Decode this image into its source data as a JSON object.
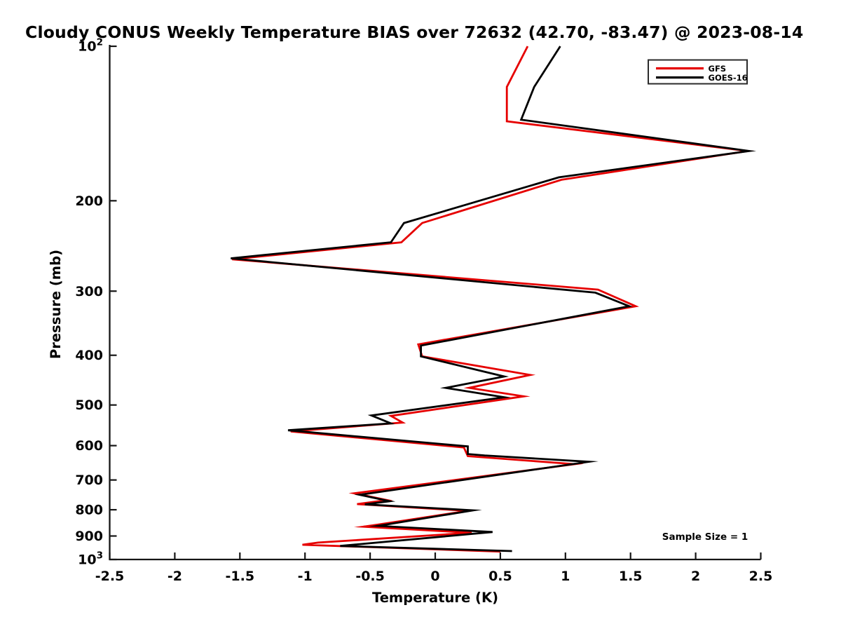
{
  "title": "Cloudy CONUS Weekly Temperature BIAS over 72632 (42.70, -83.47) @ 2023-08-14",
  "colors": {
    "gfs_red": "#e60000",
    "goes16_black": "#000000",
    "axis": "#151515",
    "background": "#ffffff"
  },
  "annotation": {
    "text": "Sample Size = 1",
    "position": "bottom-right"
  },
  "legend": {
    "position": "top-right",
    "entries": [
      {
        "label": "GFS",
        "color": "#e60000"
      },
      {
        "label": "GOES-16",
        "color": "#000000"
      }
    ]
  },
  "chart_data": {
    "type": "line",
    "title": "Cloudy CONUS Weekly Temperature BIAS over 72632 (42.70, -83.47) @ 2023-08-14",
    "xlabel": "Temperature (K)",
    "ylabel": "Pressure (mb)",
    "xlim": [
      -2.5,
      2.5
    ],
    "x_ticks": [
      -2.5,
      -2,
      -1.5,
      -1,
      -0.5,
      0,
      0.5,
      1,
      1.5,
      2,
      2.5
    ],
    "x_tick_labels": [
      "-2.5",
      "-2",
      "-1.5",
      "-1",
      "-0.5",
      "0",
      "0.5",
      "1",
      "1.5",
      "2",
      "2.5"
    ],
    "y_scale": "log",
    "y_inverted": true,
    "ylim": [
      100,
      1000
    ],
    "y_ticks": [
      100,
      200,
      300,
      400,
      500,
      600,
      700,
      800,
      900,
      1000
    ],
    "y_tick_labels": [
      "10^2",
      "200",
      "300",
      "400",
      "500",
      "600",
      "700",
      "800",
      "900",
      "10^3"
    ],
    "grid": false,
    "legend_position": "top-right",
    "annotation": "Sample Size = 1",
    "series": [
      {
        "name": "GFS",
        "color": "#e60000",
        "points_pressure_mb_temp_k": [
          [
            100,
            0.71
          ],
          [
            120,
            0.55
          ],
          [
            140,
            0.55
          ],
          [
            160,
            2.4
          ],
          [
            182,
            0.97
          ],
          [
            221,
            -0.1
          ],
          [
            241,
            -0.26
          ],
          [
            260,
            -1.56
          ],
          [
            298,
            1.25
          ],
          [
            321,
            1.54
          ],
          [
            381,
            -0.13
          ],
          [
            402,
            -0.1
          ],
          [
            437,
            0.73
          ],
          [
            463,
            0.26
          ],
          [
            481,
            0.68
          ],
          [
            525,
            -0.34
          ],
          [
            541,
            -0.25
          ],
          [
            563,
            -1.11
          ],
          [
            605,
            0.22
          ],
          [
            629,
            0.25
          ],
          [
            652,
            1.07
          ],
          [
            743,
            -0.62
          ],
          [
            766,
            -0.37
          ],
          [
            780,
            -0.6
          ],
          [
            804,
            0.25
          ],
          [
            855,
            -0.44
          ],
          [
            863,
            -0.55
          ],
          [
            887,
            0.28
          ],
          [
            927,
            -0.9
          ],
          [
            936,
            -1.02
          ],
          [
            965,
            0.5
          ]
        ]
      },
      {
        "name": "GOES-16",
        "color": "#000000",
        "points_pressure_mb_temp_k": [
          [
            100,
            0.96
          ],
          [
            120,
            0.76
          ],
          [
            139,
            0.66
          ],
          [
            160,
            2.41
          ],
          [
            180,
            0.95
          ],
          [
            221,
            -0.24
          ],
          [
            241,
            -0.34
          ],
          [
            259,
            -1.57
          ],
          [
            302,
            1.23
          ],
          [
            321,
            1.49
          ],
          [
            383,
            -0.11
          ],
          [
            402,
            -0.11
          ],
          [
            440,
            0.53
          ],
          [
            463,
            0.08
          ],
          [
            483,
            0.53
          ],
          [
            524,
            -0.49
          ],
          [
            543,
            -0.34
          ],
          [
            560,
            -1.13
          ],
          [
            602,
            0.25
          ],
          [
            623,
            0.25
          ],
          [
            627,
            0.38
          ],
          [
            645,
            1.18
          ],
          [
            748,
            -0.58
          ],
          [
            770,
            -0.35
          ],
          [
            781,
            -0.54
          ],
          [
            802,
            0.29
          ],
          [
            860,
            -0.44
          ],
          [
            884,
            0.44
          ],
          [
            941,
            -0.73
          ],
          [
            963,
            0.59
          ]
        ]
      }
    ]
  }
}
